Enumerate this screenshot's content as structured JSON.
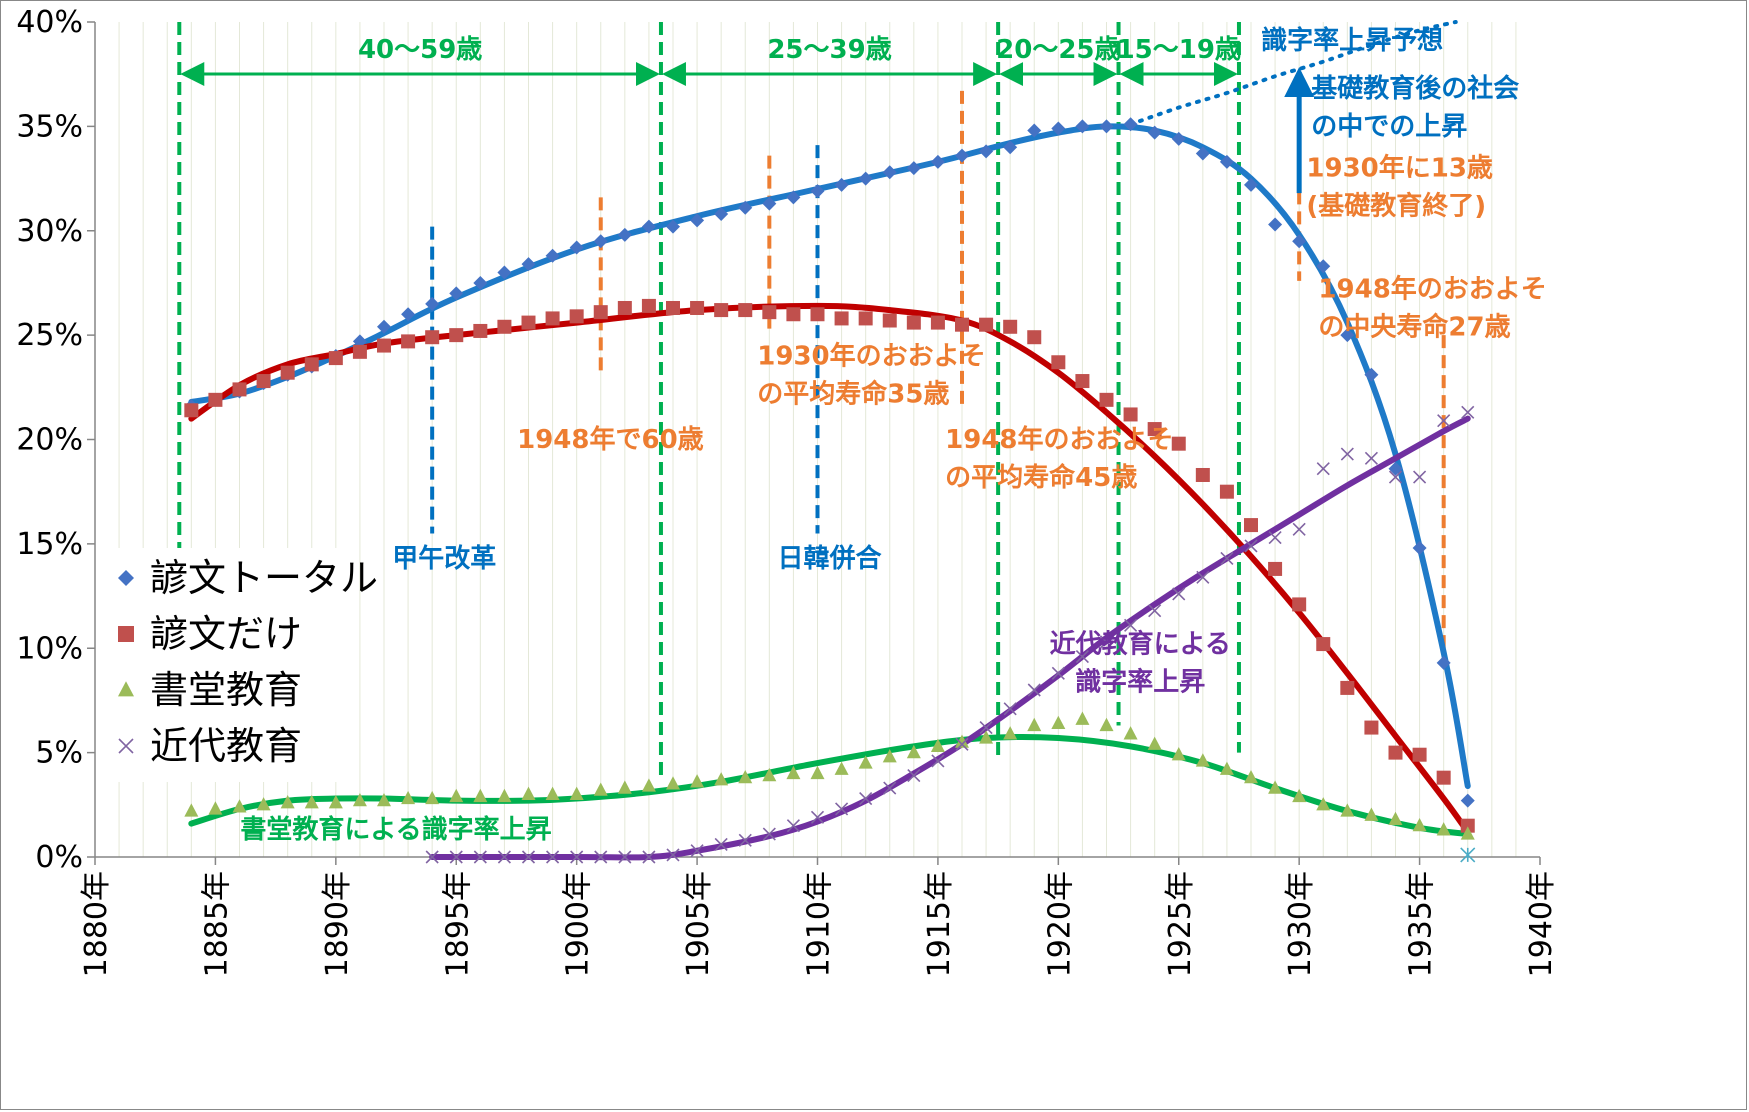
{
  "chart_data": {
    "type": "scatter",
    "title": "",
    "xlabel": "",
    "ylabel": "",
    "xlim": [
      1880,
      1940
    ],
    "ylim": [
      0,
      40
    ],
    "x_ticks": [
      "1880年",
      "1885年",
      "1890年",
      "1895年",
      "1900年",
      "1905年",
      "1910年",
      "1915年",
      "1920年",
      "1925年",
      "1930年",
      "1935年",
      "1940年"
    ],
    "y_ticks": [
      "0%",
      "5%",
      "10%",
      "15%",
      "20%",
      "25%",
      "30%",
      "35%",
      "40%"
    ],
    "grid": "vertical minor gridlines per year",
    "legend_position": "left-middle",
    "series": [
      {
        "name": "諺文トータル",
        "marker": "diamond",
        "color": "#4472C4",
        "trend_color": "#1F7AC8",
        "x": [
          1884,
          1885,
          1886,
          1887,
          1888,
          1889,
          1890,
          1891,
          1892,
          1893,
          1894,
          1895,
          1896,
          1897,
          1898,
          1899,
          1900,
          1901,
          1902,
          1903,
          1904,
          1905,
          1906,
          1907,
          1908,
          1909,
          1910,
          1911,
          1912,
          1913,
          1914,
          1915,
          1916,
          1917,
          1918,
          1919,
          1920,
          1921,
          1922,
          1923,
          1924,
          1925,
          1926,
          1927,
          1928,
          1929,
          1930,
          1931,
          1932,
          1933,
          1934,
          1935,
          1936,
          1937
        ],
        "y": [
          21.6,
          21.9,
          22.3,
          22.7,
          23.1,
          23.5,
          24.0,
          24.7,
          25.4,
          26.0,
          26.5,
          27.0,
          27.5,
          28.0,
          28.4,
          28.8,
          29.2,
          29.5,
          29.8,
          30.2,
          30.2,
          30.5,
          30.8,
          31.1,
          31.3,
          31.6,
          31.9,
          32.2,
          32.5,
          32.8,
          33.0,
          33.3,
          33.6,
          33.8,
          34.0,
          34.8,
          34.9,
          35.0,
          35.0,
          35.1,
          34.7,
          34.4,
          33.7,
          33.3,
          32.2,
          30.3,
          29.5,
          28.3,
          25.0,
          23.1,
          18.6,
          14.8,
          9.3,
          2.7
        ]
      },
      {
        "name": "諺文だけ",
        "marker": "square",
        "color": "#C0504D",
        "trend_color": "#C00000",
        "x": [
          1884,
          1885,
          1886,
          1887,
          1888,
          1889,
          1890,
          1891,
          1892,
          1893,
          1894,
          1895,
          1896,
          1897,
          1898,
          1899,
          1900,
          1901,
          1902,
          1903,
          1904,
          1905,
          1906,
          1907,
          1908,
          1909,
          1910,
          1911,
          1912,
          1913,
          1914,
          1915,
          1916,
          1917,
          1918,
          1919,
          1920,
          1921,
          1922,
          1923,
          1924,
          1925,
          1926,
          1927,
          1928,
          1929,
          1930,
          1931,
          1932,
          1933,
          1934,
          1935,
          1936,
          1937
        ],
        "y": [
          21.4,
          21.9,
          22.4,
          22.8,
          23.2,
          23.6,
          23.9,
          24.2,
          24.5,
          24.7,
          24.9,
          25.0,
          25.2,
          25.4,
          25.6,
          25.8,
          25.9,
          26.1,
          26.3,
          26.4,
          26.3,
          26.3,
          26.2,
          26.2,
          26.1,
          26.0,
          26.0,
          25.8,
          25.8,
          25.7,
          25.6,
          25.6,
          25.5,
          25.5,
          25.4,
          24.9,
          23.7,
          22.8,
          21.9,
          21.2,
          20.5,
          19.8,
          18.3,
          17.5,
          15.9,
          13.8,
          12.1,
          10.2,
          8.1,
          6.2,
          5.0,
          4.9,
          3.8,
          1.5
        ]
      },
      {
        "name": "書堂教育",
        "marker": "triangle",
        "color": "#9BBB59",
        "trend_color": "#00B050",
        "x": [
          1884,
          1885,
          1886,
          1887,
          1888,
          1889,
          1890,
          1891,
          1892,
          1893,
          1894,
          1895,
          1896,
          1897,
          1898,
          1899,
          1900,
          1901,
          1902,
          1903,
          1904,
          1905,
          1906,
          1907,
          1908,
          1909,
          1910,
          1911,
          1912,
          1913,
          1914,
          1915,
          1916,
          1917,
          1918,
          1919,
          1920,
          1921,
          1922,
          1923,
          1924,
          1925,
          1926,
          1927,
          1928,
          1929,
          1930,
          1931,
          1932,
          1933,
          1934,
          1935,
          1936,
          1937
        ],
        "y": [
          2.2,
          2.3,
          2.4,
          2.5,
          2.6,
          2.6,
          2.6,
          2.7,
          2.7,
          2.8,
          2.8,
          2.9,
          2.9,
          2.9,
          3.0,
          3.0,
          3.0,
          3.2,
          3.3,
          3.4,
          3.5,
          3.6,
          3.7,
          3.8,
          3.9,
          4.0,
          4.0,
          4.2,
          4.5,
          4.8,
          5.0,
          5.3,
          5.5,
          5.7,
          5.9,
          6.3,
          6.4,
          6.6,
          6.3,
          5.9,
          5.4,
          4.9,
          4.6,
          4.2,
          3.8,
          3.3,
          2.9,
          2.5,
          2.2,
          2.0,
          1.8,
          1.5,
          1.3,
          1.1
        ]
      },
      {
        "name": "近代教育",
        "marker": "x",
        "color": "#8064A2",
        "trend_color": "#7030A0",
        "x": [
          1894,
          1895,
          1896,
          1897,
          1898,
          1899,
          1900,
          1901,
          1902,
          1903,
          1904,
          1905,
          1906,
          1907,
          1908,
          1909,
          1910,
          1911,
          1912,
          1913,
          1914,
          1915,
          1916,
          1917,
          1918,
          1919,
          1920,
          1921,
          1922,
          1923,
          1924,
          1925,
          1926,
          1927,
          1928,
          1929,
          1930,
          1931,
          1932,
          1933,
          1934,
          1935,
          1936,
          1937
        ],
        "y": [
          0,
          0,
          0,
          0,
          0,
          0,
          0,
          0,
          0,
          0,
          0.1,
          0.3,
          0.6,
          0.8,
          1.1,
          1.5,
          1.9,
          2.3,
          2.8,
          3.3,
          3.9,
          4.6,
          5.4,
          6.2,
          7.1,
          8.0,
          8.8,
          9.6,
          10.3,
          11.1,
          11.8,
          12.6,
          13.4,
          14.3,
          14.9,
          15.3,
          15.7,
          18.6,
          19.3,
          19.1,
          18.2,
          18.2,
          20.9,
          21.3
        ]
      },
      {
        "name": "",
        "marker": "asterisk",
        "color": "#4BACC6",
        "x": [
          1937
        ],
        "y": [
          0.1
        ]
      }
    ],
    "trend_curves": [
      {
        "series": "諺文トータル",
        "color": "#1F7AC8",
        "x": [
          1884,
          1886,
          1888,
          1890,
          1892,
          1895,
          1900,
          1905,
          1910,
          1915,
          1918,
          1920,
          1922,
          1924,
          1926,
          1928,
          1930,
          1932,
          1934,
          1936,
          1937
        ],
        "y": [
          21.8,
          22.2,
          23.0,
          24.0,
          25.1,
          26.8,
          29.1,
          30.7,
          32.0,
          33.3,
          34.2,
          34.7,
          35.0,
          34.8,
          34.0,
          32.5,
          29.8,
          25.6,
          19.3,
          9.8,
          3.4
        ]
      },
      {
        "series": "諺文だけ",
        "color": "#C00000",
        "x": [
          1884,
          1886,
          1888,
          1890,
          1892,
          1895,
          1900,
          1905,
          1910,
          1913,
          1916,
          1918,
          1920,
          1922,
          1924,
          1926,
          1928,
          1930,
          1932,
          1934,
          1936,
          1937
        ],
        "y": [
          21.0,
          22.6,
          23.6,
          24.1,
          24.6,
          25.0,
          25.6,
          26.2,
          26.4,
          26.2,
          25.7,
          24.7,
          23.2,
          21.3,
          19.2,
          16.9,
          14.4,
          11.7,
          8.8,
          5.8,
          2.8,
          1.2
        ]
      },
      {
        "series": "書堂教育",
        "color": "#00B050",
        "x": [
          1884,
          1886,
          1888,
          1890,
          1892,
          1895,
          1898,
          1900,
          1903,
          1906,
          1910,
          1914,
          1917,
          1920,
          1923,
          1926,
          1929,
          1932,
          1935,
          1937
        ],
        "y": [
          1.6,
          2.3,
          2.7,
          2.8,
          2.8,
          2.7,
          2.7,
          2.8,
          3.1,
          3.6,
          4.5,
          5.3,
          5.7,
          5.7,
          5.3,
          4.5,
          3.3,
          2.2,
          1.4,
          1.1
        ]
      },
      {
        "series": "近代教育",
        "color": "#7030A0",
        "x": [
          1894,
          1900,
          1903,
          1905,
          1908,
          1910,
          1912,
          1914,
          1916,
          1918,
          1920,
          1922,
          1924,
          1926,
          1928,
          1930,
          1932,
          1934,
          1936,
          1937
        ],
        "y": [
          0,
          0,
          0,
          0.3,
          1.0,
          1.7,
          2.7,
          4.0,
          5.4,
          7.0,
          8.7,
          10.5,
          12.1,
          13.6,
          15.0,
          16.4,
          17.8,
          19.1,
          20.4,
          21.0
        ]
      },
      {
        "series": "識字率上昇予想",
        "style": "dotted",
        "color": "#0070C0",
        "x": [
          1923,
          1925,
          1927,
          1929,
          1931,
          1933,
          1935,
          1936.5
        ],
        "y": [
          35.1,
          35.9,
          36.6,
          37.4,
          38.1,
          38.9,
          39.6,
          40.0
        ]
      }
    ],
    "vertical_markers": [
      {
        "x": 1883.5,
        "y_top": 40,
        "y_bottom": 14.2,
        "color": "#00B050",
        "style": "dashed"
      },
      {
        "x": 1903.5,
        "y_top": 40,
        "y_bottom": 3.9,
        "color": "#00B050",
        "style": "dashed"
      },
      {
        "x": 1917.5,
        "y_top": 40,
        "y_bottom": 4.8,
        "color": "#00B050",
        "style": "dashed"
      },
      {
        "x": 1922.5,
        "y_top": 40,
        "y_bottom": 6.3,
        "color": "#00B050",
        "style": "dashed"
      },
      {
        "x": 1927.5,
        "y_top": 40,
        "y_bottom": 5.0,
        "color": "#00B050",
        "style": "dashed"
      },
      {
        "x": 1894,
        "y_top": 30.2,
        "y_bottom": 15.5,
        "color": "#0070C0",
        "style": "dashed"
      },
      {
        "x": 1910,
        "y_top": 34.1,
        "y_bottom": 15.5,
        "color": "#0070C0",
        "style": "dashed"
      },
      {
        "x": 1901,
        "y_top": 31.6,
        "y_bottom": 23.1,
        "color": "#ED7D31",
        "style": "dashed"
      },
      {
        "x": 1908,
        "y_top": 33.6,
        "y_bottom": 25.2,
        "color": "#ED7D31",
        "style": "dashed"
      },
      {
        "x": 1916,
        "y_top": 36.7,
        "y_bottom": 21.7,
        "color": "#ED7D31",
        "style": "dashed"
      },
      {
        "x": 1930,
        "y_top": 33.8,
        "y_bottom": 27.6,
        "color": "#ED7D31",
        "style": "dashed"
      },
      {
        "x": 1936,
        "y_top": 25.0,
        "y_bottom": 10.0,
        "color": "#ED7D31",
        "style": "dashed"
      }
    ],
    "age_ranges": [
      {
        "label": "40～59歳",
        "x_start": 1883.5,
        "x_end": 1903.5
      },
      {
        "label": "25～39歳",
        "x_start": 1903.5,
        "x_end": 1917.5
      },
      {
        "label": "20～25歳",
        "x_start": 1917.5,
        "x_end": 1922.5
      },
      {
        "label": "15～19歳",
        "x_start": 1922.5,
        "x_end": 1927.5
      }
    ],
    "annotations": [
      {
        "lines": [
          "甲午改革"
        ],
        "x": 1894.5,
        "y": 13.9,
        "color": "#0070C0",
        "anchor": "middle"
      },
      {
        "lines": [
          "日韓併合"
        ],
        "x": 1910.5,
        "y": 13.9,
        "color": "#0070C0",
        "anchor": "middle"
      },
      {
        "lines": [
          "1948年で60歳"
        ],
        "x": 1901.4,
        "y": 19.6,
        "color": "#ED7D31",
        "anchor": "middle"
      },
      {
        "lines": [
          "1930年のおおよそ",
          "の平均寿命35歳"
        ],
        "x": 1907.5,
        "y": 23.6,
        "color": "#ED7D31",
        "anchor": "start"
      },
      {
        "lines": [
          "1948年のおおよそ",
          "の平均寿命45歳"
        ],
        "x": 1915.3,
        "y": 19.6,
        "color": "#ED7D31",
        "anchor": "start"
      },
      {
        "lines": [
          "識字率上昇予想"
        ],
        "x": 1932.2,
        "y": 38.7,
        "color": "#0070C0",
        "anchor": "middle"
      },
      {
        "lines": [
          "基礎教育後の社会",
          "の中での上昇"
        ],
        "x": 1930.5,
        "y": 36.4,
        "color": "#0070C0",
        "anchor": "start"
      },
      {
        "lines": [
          "1930年に13歳",
          "(基礎教育終了)"
        ],
        "x": 1930.3,
        "y": 32.6,
        "color": "#ED7D31",
        "anchor": "start"
      },
      {
        "lines": [
          "1948年のおおよそ",
          "の中央寿命27歳"
        ],
        "x": 1930.8,
        "y": 26.8,
        "color": "#ED7D31",
        "anchor": "start"
      },
      {
        "lines": [
          "近代教育による",
          "識字率上昇"
        ],
        "x": 1923.4,
        "y": 9.8,
        "color": "#7030A0",
        "anchor": "middle"
      },
      {
        "lines": [
          "書堂教育による識字率上昇"
        ],
        "x": 1892.5,
        "y": 0.9,
        "color": "#00B050",
        "anchor": "middle"
      }
    ]
  }
}
